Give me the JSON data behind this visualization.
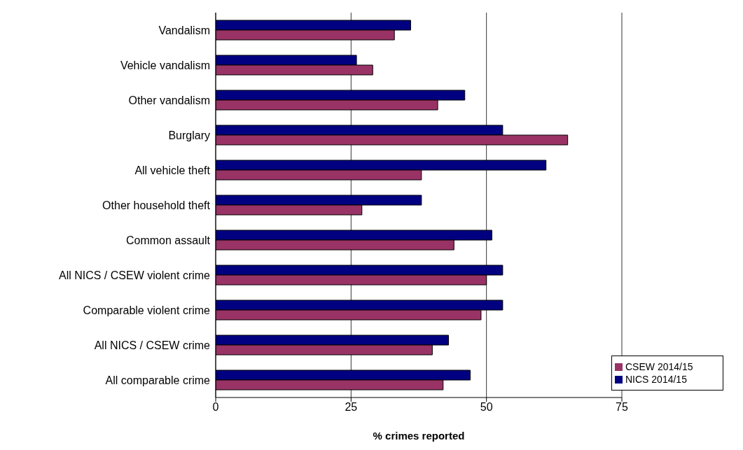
{
  "chart_data": {
    "type": "bar",
    "orientation": "horizontal",
    "xlabel": "% crimes reported",
    "categories": [
      "Vandalism",
      "Vehicle vandalism",
      "Other vandalism",
      "Burglary",
      "All vehicle theft",
      "Other household theft",
      "Common assault",
      "All NICS / CSEW violent crime",
      "Comparable violent crime",
      "All NICS / CSEW crime",
      "All comparable crime"
    ],
    "series": [
      {
        "name": "NICS 2014/15",
        "color": "#000080",
        "values": [
          36,
          26,
          46,
          53,
          61,
          38,
          51,
          53,
          53,
          43,
          47
        ]
      },
      {
        "name": "CSEW 2014/15",
        "color": "#993366",
        "values": [
          33,
          29,
          41,
          65,
          38,
          27,
          44,
          50,
          49,
          40,
          42
        ]
      }
    ],
    "xlim": [
      0,
      75
    ],
    "xticks": [
      0,
      25,
      50,
      75
    ],
    "grid": "x",
    "legend": "bottom right"
  }
}
